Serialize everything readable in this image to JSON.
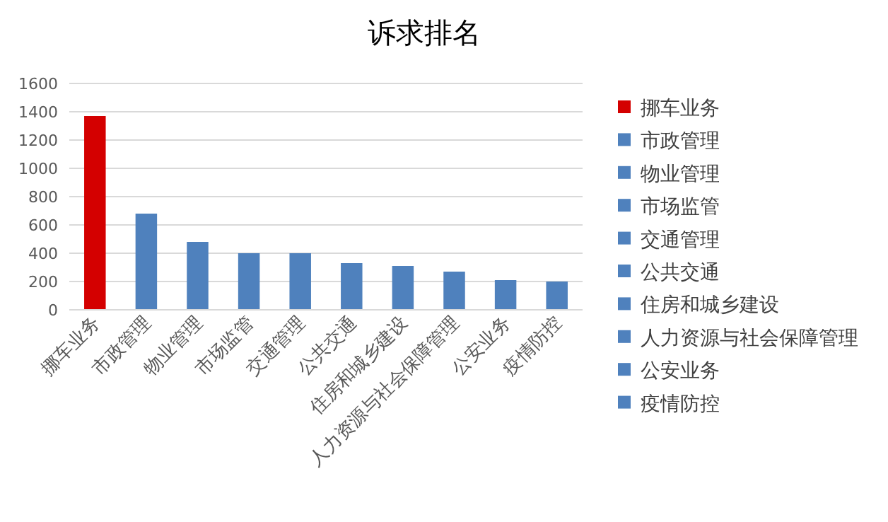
{
  "chart_data": {
    "type": "bar",
    "title": "诉求排名",
    "categories": [
      "挪车业务",
      "市政管理",
      "物业管理",
      "市场监管",
      "交通管理",
      "公共交通",
      "住房和城乡建设",
      "人力资源与社会保障管理",
      "公安业务",
      "疫情防控"
    ],
    "stacked": true,
    "series": [
      {
        "name": "挪车业务",
        "color": "#d40000",
        "values": [
          1370,
          null,
          null,
          null,
          null,
          null,
          null,
          null,
          null,
          null
        ]
      },
      {
        "name": "市政管理",
        "color": "#4f81bd",
        "values": [
          null,
          680,
          null,
          null,
          null,
          null,
          null,
          null,
          null,
          null
        ]
      },
      {
        "name": "物业管理",
        "color": "#4f81bd",
        "values": [
          null,
          null,
          480,
          null,
          null,
          null,
          null,
          null,
          null,
          null
        ]
      },
      {
        "name": "市场监管",
        "color": "#4f81bd",
        "values": [
          null,
          null,
          null,
          400,
          null,
          null,
          null,
          null,
          null,
          null
        ]
      },
      {
        "name": "交通管理",
        "color": "#4f81bd",
        "values": [
          null,
          null,
          null,
          null,
          400,
          null,
          null,
          null,
          null,
          null
        ]
      },
      {
        "name": "公共交通",
        "color": "#4f81bd",
        "values": [
          null,
          null,
          null,
          null,
          null,
          330,
          null,
          null,
          null,
          null
        ]
      },
      {
        "name": "住房和城乡建设",
        "color": "#4f81bd",
        "values": [
          null,
          null,
          null,
          null,
          null,
          null,
          310,
          null,
          null,
          null
        ]
      },
      {
        "name": "人力资源与社会保障管理",
        "color": "#4f81bd",
        "values": [
          null,
          null,
          null,
          null,
          null,
          null,
          null,
          270,
          null,
          null
        ]
      },
      {
        "name": "公安业务",
        "color": "#4f81bd",
        "values": [
          null,
          null,
          null,
          null,
          null,
          null,
          null,
          null,
          210,
          null
        ]
      },
      {
        "name": "疫情防控",
        "color": "#4f81bd",
        "values": [
          null,
          null,
          null,
          null,
          null,
          null,
          null,
          null,
          null,
          200
        ]
      }
    ],
    "ylim": [
      0,
      1600
    ],
    "yticks": [
      0,
      200,
      400,
      600,
      800,
      1000,
      1200,
      1400,
      1600
    ],
    "grid": "y",
    "legend": "right"
  }
}
